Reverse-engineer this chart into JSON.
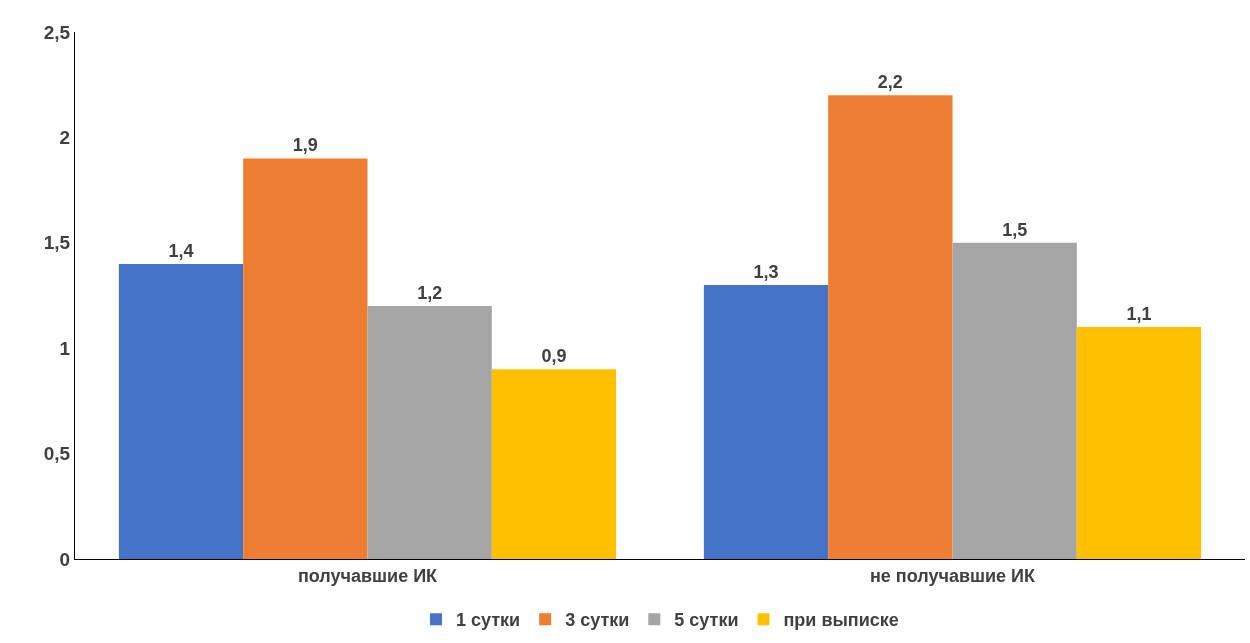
{
  "chart_data": {
    "type": "bar",
    "categories": [
      "получавшие ИК",
      "не получавшие ИК"
    ],
    "series": [
      {
        "name": "1 сутки",
        "color": "#4472c4",
        "values": [
          1.4,
          1.3
        ],
        "value_labels": [
          "1,4",
          "1,3"
        ]
      },
      {
        "name": "3 сутки",
        "color": "#ed7d31",
        "values": [
          1.9,
          2.2
        ],
        "value_labels": [
          "1,9",
          "2,2"
        ]
      },
      {
        "name": "5 сутки",
        "color": "#a5a5a5",
        "values": [
          1.2,
          1.5
        ],
        "value_labels": [
          "1,2",
          "1,5"
        ]
      },
      {
        "name": "при выписке",
        "color": "#ffc000",
        "values": [
          0.9,
          1.1
        ],
        "value_labels": [
          "0,9",
          "1,1"
        ]
      }
    ],
    "ylim": [
      0,
      2.5
    ],
    "yticks": [
      0,
      {
        "value": 0.5,
        "label": "0,5"
      },
      1,
      {
        "value": 1.5,
        "label": "1,5"
      },
      2,
      {
        "value": 2.5,
        "label": "2,5"
      }
    ],
    "grid": false,
    "legend": "bottom"
  }
}
